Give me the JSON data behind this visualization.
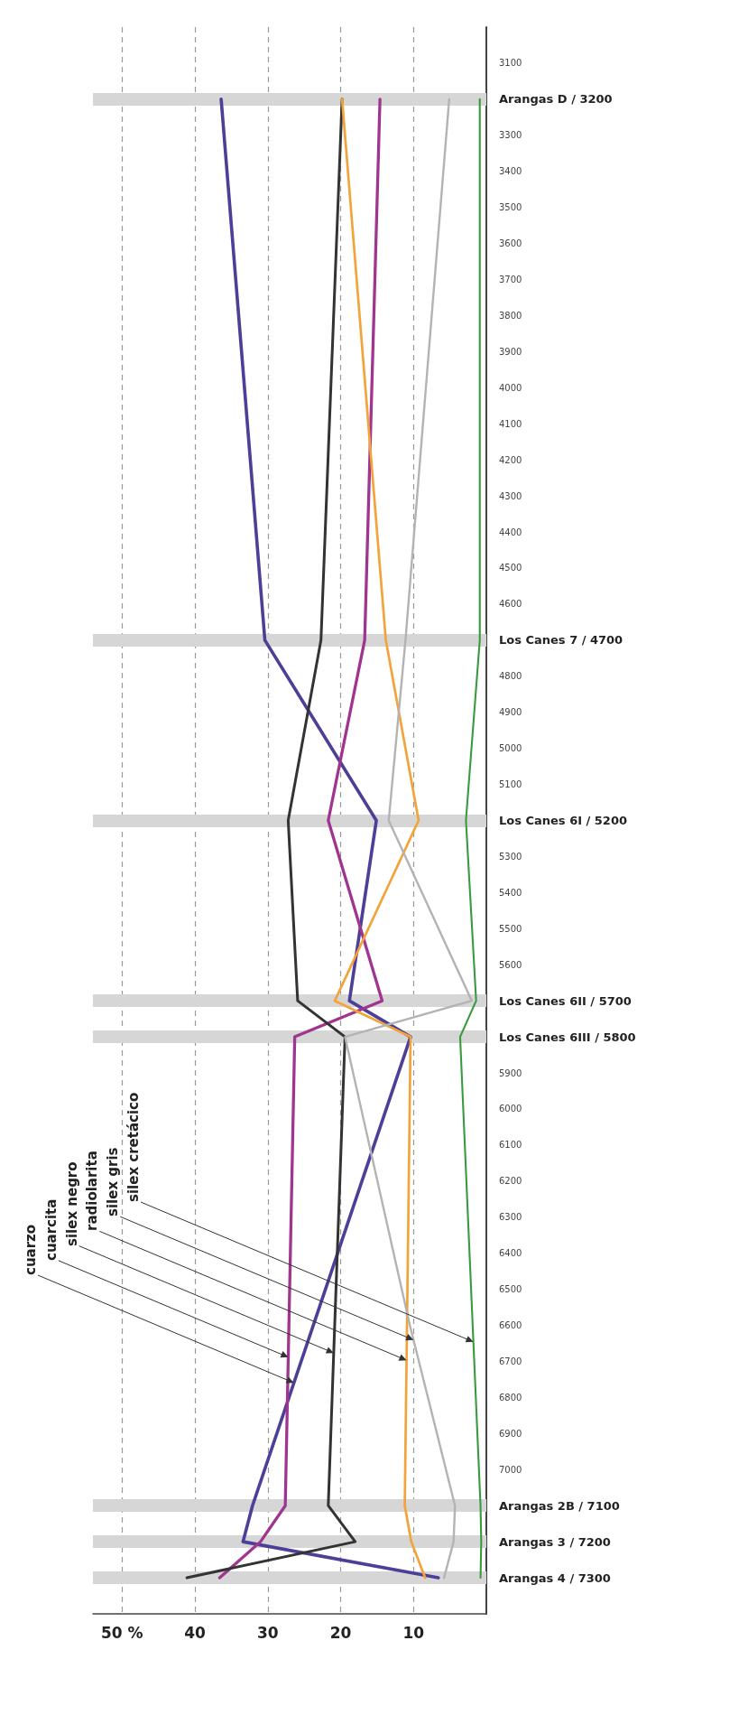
{
  "chart_data": {
    "type": "line",
    "orientation": "horizontal",
    "x": [
      7300,
      7200,
      7100,
      5800,
      5700,
      5200,
      4700,
      3200
    ],
    "ylim": [
      7400,
      3000
    ],
    "yticks": [
      3100,
      {
        "value": 3200,
        "label": "Arangas D / 3200"
      },
      3300,
      3400,
      3500,
      3600,
      3700,
      3800,
      3900,
      4000,
      4100,
      4200,
      4300,
      4400,
      4500,
      4600,
      {
        "value": 4700,
        "label": "Los Canes 7 / 4700"
      },
      4800,
      4900,
      5000,
      5100,
      {
        "value": 5200,
        "label": "Los Canes 6I / 5200"
      },
      5300,
      5400,
      5500,
      5600,
      {
        "value": 5700,
        "label": "Los Canes 6II / 5700"
      },
      {
        "value": 5800,
        "label": "Los Canes 6III / 5800"
      },
      5900,
      6000,
      6100,
      6200,
      6300,
      6400,
      6500,
      6600,
      6700,
      6800,
      6900,
      7000,
      {
        "value": 7100,
        "label": "Arangas 2B / 7100"
      },
      {
        "value": 7200,
        "label": "Arangas 3 / 7200"
      },
      {
        "value": 7300,
        "label": "Arangas 4 / 7300"
      }
    ],
    "xlim": [
      54,
      0
    ],
    "xticks": [
      {
        "value": 50,
        "label": "50 %"
      },
      40,
      30,
      20,
      10
    ],
    "grid": "x",
    "marker": "none",
    "series": [
      {
        "name": "cuarzo",
        "color": "#4b3f98",
        "values": [
          6.6,
          33.4,
          32.1,
          10.4,
          18.8,
          15.1,
          30.4,
          36.4
        ]
      },
      {
        "name": "cuarcita",
        "color": "#a0358f",
        "values": [
          36.6,
          31.0,
          27.6,
          26.3,
          14.3,
          21.7,
          16.7,
          14.6
        ]
      },
      {
        "name": "silex negro",
        "color": "#333333",
        "values": [
          41.1,
          18.0,
          21.7,
          19.4,
          25.9,
          27.2,
          22.7,
          19.8
        ]
      },
      {
        "name": "radiolarita",
        "color": "#f2a33a",
        "values": [
          8.4,
          10.3,
          11.2,
          10.4,
          20.8,
          9.3,
          13.8,
          19.8
        ]
      },
      {
        "name": "silex gris",
        "color": "#b3b3b3",
        "x": [
          7300,
          7200,
          7100,
          6600,
          5800,
          5700,
          5200,
          4700,
          3200
        ],
        "values": [
          5.8,
          4.5,
          4.3,
          10.5,
          19.4,
          2.0,
          13.4,
          11.1,
          5.1
        ]
      },
      {
        "name": "silex cretácico",
        "color": "#3a9a3f",
        "values": [
          0.8,
          0.7,
          0.8,
          3.6,
          1.4,
          2.8,
          0.9,
          0.9
        ]
      }
    ],
    "ref_lines": [
      {
        "axis": "y",
        "value": 7300,
        "color": "#d6d6d6"
      },
      {
        "axis": "y",
        "value": 7200,
        "color": "#d6d6d6"
      },
      {
        "axis": "y",
        "value": 7100,
        "color": "#d6d6d6"
      },
      {
        "axis": "y",
        "value": 5800,
        "color": "#d6d6d6"
      },
      {
        "axis": "y",
        "value": 5700,
        "color": "#d6d6d6"
      },
      {
        "axis": "y",
        "value": 5200,
        "color": "#d6d6d6"
      },
      {
        "axis": "y",
        "value": 4700,
        "color": "#d6d6d6"
      },
      {
        "axis": "y",
        "value": 3200,
        "color": "#d6d6d6"
      }
    ]
  }
}
